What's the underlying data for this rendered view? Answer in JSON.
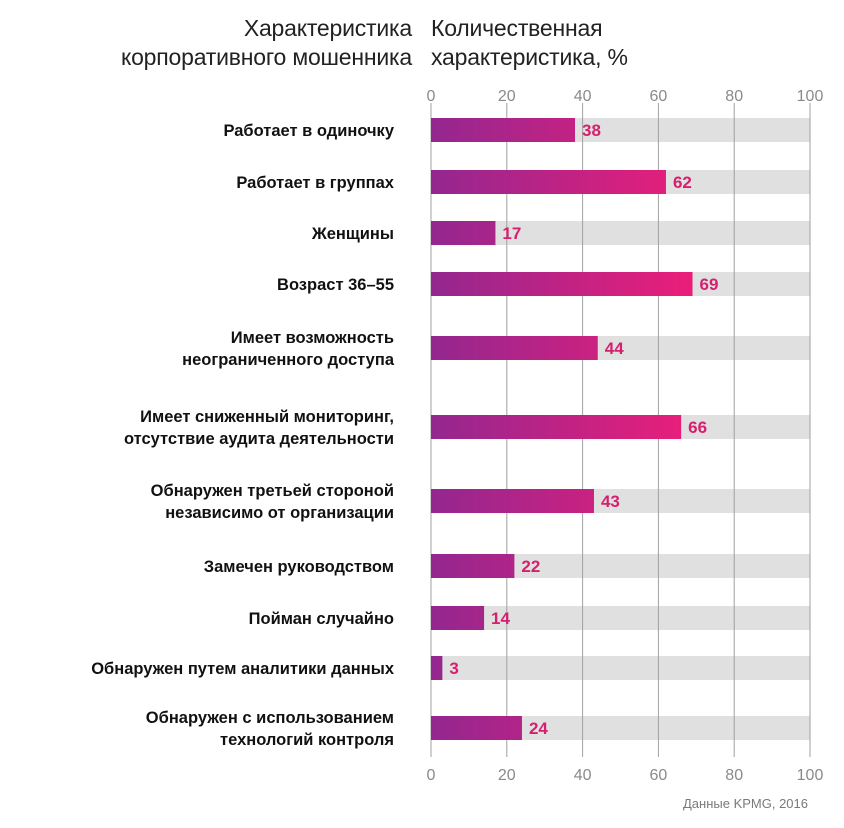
{
  "header": {
    "left_title_lines": [
      "Характеристика",
      "корпоративного мошенника"
    ],
    "right_title_lines": [
      "Количественная",
      "характеристика, %"
    ]
  },
  "source": "Данные KPMG, 2016",
  "colors": {
    "bar_start": "#93278f",
    "bar_end": "#ed1e79",
    "track": "#e0e0e0",
    "grid": "#a0a0a0",
    "value_label": "#d4206e"
  },
  "chart_data": {
    "type": "bar",
    "orientation": "horizontal",
    "title": "Характеристика корпоративного мошенника / Количественная характеристика, %",
    "xlabel": "Количественная характеристика, %",
    "ylabel": "Характеристика корпоративного мошенника",
    "xlim": [
      0,
      100
    ],
    "xticks": [
      0,
      20,
      40,
      60,
      80,
      100
    ],
    "xtick_labels": [
      "0",
      "20",
      "40",
      "60",
      "80",
      "100"
    ],
    "grid": true,
    "categories": [
      [
        "Работает в одиночку"
      ],
      [
        "Работает в группах"
      ],
      [
        "Женщины"
      ],
      [
        "Возраст 36–55"
      ],
      [
        "Имеет возможность",
        "неограниченного доступа"
      ],
      [
        "Имеет сниженный мониторинг,",
        "отсутствие аудита деятельности"
      ],
      [
        "Обнаружен третьей стороной",
        "независимо от организации"
      ],
      [
        "Замечен руководством"
      ],
      [
        "Пойман случайно"
      ],
      [
        "Обнаружен путем аналитики данных"
      ],
      [
        "Обнаружен с использованием",
        "технологий контроля"
      ]
    ],
    "values": [
      38,
      62,
      17,
      69,
      44,
      66,
      43,
      22,
      14,
      3,
      24
    ],
    "value_labels": [
      "38",
      "62",
      "17",
      "69",
      "44",
      "66",
      "43",
      "22",
      "14",
      "3",
      "24"
    ]
  }
}
